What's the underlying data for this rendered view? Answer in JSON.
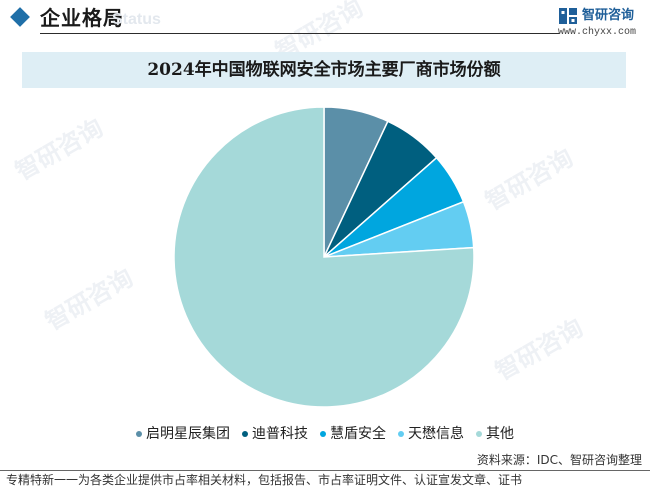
{
  "header": {
    "section_title": "企业格局",
    "section_ghost": "Status",
    "brand_name": "智研咨询",
    "brand_url": "www.chyxx.com"
  },
  "watermark": "智研咨询",
  "colors": {
    "accent": "#1f6fa8",
    "title_band": "#deeef5"
  },
  "chart_data": {
    "type": "pie",
    "title": "2024年中国物联网安全市场主要厂商市场份额",
    "unit": "%",
    "labels": [
      "启明星辰集团",
      "迪普科技",
      "慧盾安全",
      "天懋信息",
      "其他"
    ],
    "values": [
      7.0,
      6.5,
      5.5,
      5.0,
      76.0
    ],
    "colors": [
      "#5b8fa8",
      "#005f7f",
      "#00a6df",
      "#63cdf2",
      "#a5d9d9"
    ],
    "start_angle_deg": 0,
    "direction": "clockwise",
    "legend_position": "bottom"
  },
  "source": "资料来源：IDC、智研咨询整理",
  "footer": "专精特新一一为各类企业提供市占率相关材料，包括报告、市占率证明文件、认证宣发文章、证书"
}
